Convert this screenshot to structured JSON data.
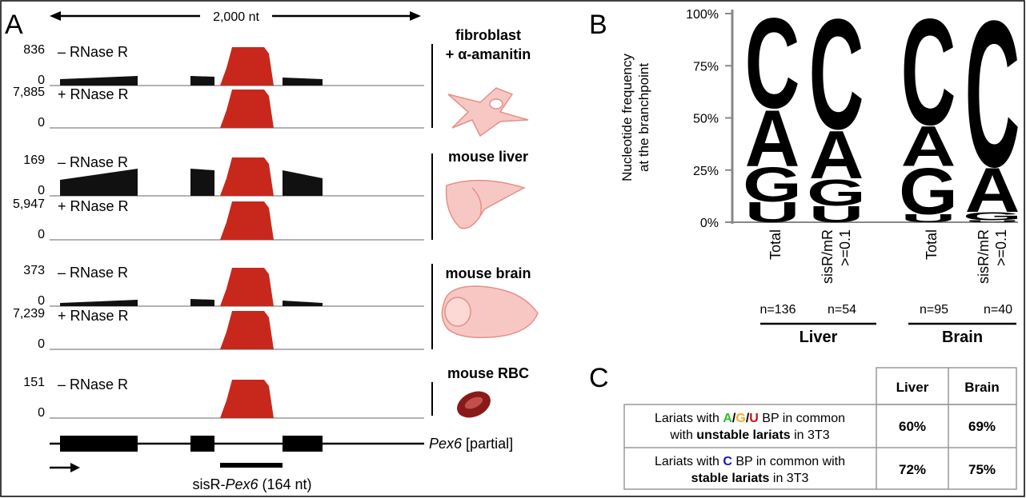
{
  "panel_a": {
    "label": "A",
    "scale": "2,000 nt",
    "tracks": [
      {
        "max": "836",
        "zero": "0",
        "condition": "– RNase R"
      },
      {
        "max": "7,885",
        "zero": "0",
        "condition": "+ RNase R"
      },
      {
        "max": "169",
        "zero": "0",
        "condition": "– RNase R"
      },
      {
        "max": "5,947",
        "zero": "0",
        "condition": "+ RNase R"
      },
      {
        "max": "373",
        "zero": "0",
        "condition": "– RNase R"
      },
      {
        "max": "7,239",
        "zero": "0",
        "condition": "+ RNase R"
      },
      {
        "max": "151",
        "zero": "0",
        "condition": "– RNase R"
      }
    ],
    "samples": [
      {
        "lines": [
          "fibroblast",
          "+ α-amanitin"
        ]
      },
      {
        "lines": [
          "mouse liver"
        ]
      },
      {
        "lines": [
          "mouse brain"
        ]
      },
      {
        "lines": [
          "mouse RBC"
        ]
      }
    ],
    "gene": {
      "name": "Pex6",
      "note": "[partial]"
    },
    "product": {
      "prefix": "sisR-",
      "name": "Pex6",
      "length": "(164 nt)"
    }
  },
  "panel_b": {
    "label": "B",
    "ylabel": [
      "Nucleotide frequency",
      "at the branchpoint"
    ],
    "ylim": [
      0,
      100
    ],
    "yticks": [
      {
        "value": 0,
        "label": "0%"
      },
      {
        "value": 25,
        "label": "25%"
      },
      {
        "value": 50,
        "label": "50%"
      },
      {
        "value": 75,
        "label": "75%"
      },
      {
        "value": 100,
        "label": "100%"
      }
    ],
    "columns": [
      {
        "label": [
          "Total"
        ],
        "n": "n=136",
        "stack": [
          {
            "letter": "U",
            "value": 10,
            "color": "#c0141e"
          },
          {
            "letter": "G",
            "value": 17,
            "color": "#f2ae2e"
          },
          {
            "letter": "A",
            "value": 28,
            "color": "#2fbf2f"
          },
          {
            "letter": "C",
            "value": 45,
            "color": "#1414c0"
          }
        ]
      },
      {
        "label": [
          "sisR/mR",
          ">=0.1"
        ],
        "n": "n=54",
        "stack": [
          {
            "letter": "U",
            "value": 8,
            "color": "#c0141e"
          },
          {
            "letter": "G",
            "value": 13,
            "color": "#f2ae2e"
          },
          {
            "letter": "A",
            "value": 24,
            "color": "#2fbf2f"
          },
          {
            "letter": "C",
            "value": 55,
            "color": "#1414c0"
          }
        ]
      },
      {
        "label": [
          "Total"
        ],
        "n": "n=95",
        "stack": [
          {
            "letter": "U",
            "value": 4,
            "color": "#c0141e"
          },
          {
            "letter": "G",
            "value": 23,
            "color": "#f2ae2e"
          },
          {
            "letter": "A",
            "value": 20,
            "color": "#2fbf2f"
          },
          {
            "letter": "C",
            "value": 53,
            "color": "#1414c0"
          }
        ]
      },
      {
        "label": [
          "sisR/mR",
          ">=0.1"
        ],
        "n": "n=40",
        "stack": [
          {
            "letter": "U",
            "value": 1,
            "color": "#c0141e"
          },
          {
            "letter": "G",
            "value": 4,
            "color": "#f2ae2e"
          },
          {
            "letter": "A",
            "value": 22,
            "color": "#2fbf2f"
          },
          {
            "letter": "C",
            "value": 73,
            "color": "#1414c0"
          }
        ]
      }
    ],
    "groups": [
      {
        "name": "Liver"
      },
      {
        "name": "Brain"
      }
    ]
  },
  "panel_c": {
    "label": "C",
    "header": [
      "Liver",
      "Brain"
    ],
    "rows": [
      {
        "description": [
          [
            {
              "text": "Lariats with "
            },
            {
              "text": "A",
              "color": "#2fbf2f",
              "bold": true
            },
            {
              "text": "/",
              "bold": true
            },
            {
              "text": "G",
              "color": "#f2ae2e",
              "bold": true
            },
            {
              "text": "/",
              "bold": true
            },
            {
              "text": "U",
              "color": "#c0141e",
              "bold": true
            },
            {
              "text": " BP in common"
            }
          ],
          [
            {
              "text": "with "
            },
            {
              "text": "unstable lariats",
              "bold": true
            },
            {
              "text": " in 3T3"
            }
          ]
        ],
        "values": [
          "60%",
          "69%"
        ]
      },
      {
        "description": [
          [
            {
              "text": "Lariats with "
            },
            {
              "text": "C",
              "color": "#1414c0",
              "bold": true
            },
            {
              "text": " BP in common with"
            }
          ],
          [
            {
              "text": "stable lariats",
              "bold": true
            },
            {
              "text": " in 3T3"
            }
          ]
        ],
        "values": [
          "72%",
          "75%"
        ]
      }
    ]
  }
}
